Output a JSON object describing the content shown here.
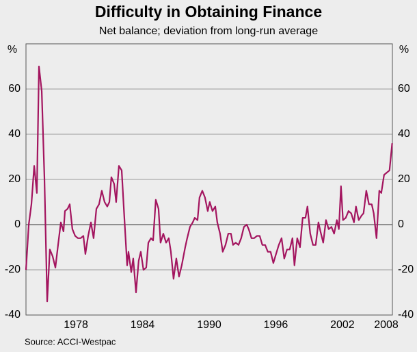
{
  "chart_data": {
    "type": "line",
    "title": "Difficulty in Obtaining Finance",
    "subtitle": "Net balance; deviation from long-run average",
    "y_label": "%",
    "source": "Source: ACCI-Westpac",
    "ylim": [
      -40,
      80
    ],
    "yticks": [
      -40,
      -20,
      0,
      20,
      40,
      60
    ],
    "xlim": [
      1974,
      2007
    ],
    "xticks": [
      {
        "value": 1978.5,
        "label": "1978"
      },
      {
        "value": 1984.5,
        "label": "1984"
      },
      {
        "value": 1990.5,
        "label": "1990"
      },
      {
        "value": 1996.5,
        "label": "1996"
      },
      {
        "value": 2002.5,
        "label": "2002"
      },
      {
        "value": 2008.5,
        "label": "2008"
      }
    ],
    "grid": true,
    "series": [
      {
        "color": "#a3155f",
        "x": [
          1974.0,
          1974.25,
          1974.49,
          1974.74,
          1974.98,
          1975.17,
          1975.42,
          1975.66,
          1975.91,
          1976.15,
          1976.4,
          1976.65,
          1976.89,
          1977.14,
          1977.38,
          1977.51,
          1977.75,
          1977.94,
          1978.18,
          1978.43,
          1978.68,
          1978.92,
          1979.17,
          1979.35,
          1979.6,
          1979.85,
          1980.09,
          1980.34,
          1980.58,
          1980.83,
          1981.08,
          1981.32,
          1981.51,
          1981.69,
          1981.94,
          1982.12,
          1982.37,
          1982.62,
          1982.86,
          1983.11,
          1983.23,
          1983.48,
          1983.66,
          1983.91,
          1984.15,
          1984.34,
          1984.58,
          1984.83,
          1985.02,
          1985.26,
          1985.45,
          1985.69,
          1985.94,
          1986.12,
          1986.37,
          1986.62,
          1986.86,
          1987.05,
          1987.29,
          1987.54,
          1987.78,
          1988.03,
          1988.34,
          1988.52,
          1988.77,
          1989.02,
          1989.2,
          1989.45,
          1989.63,
          1989.88,
          1990.12,
          1990.37,
          1990.55,
          1990.8,
          1991.05,
          1991.23,
          1991.48,
          1991.72,
          1991.97,
          1992.22,
          1992.46,
          1992.65,
          1992.89,
          1993.14,
          1993.38,
          1993.63,
          1993.88,
          1994.06,
          1994.31,
          1994.55,
          1994.8,
          1995.05,
          1995.29,
          1995.54,
          1995.78,
          1996.03,
          1996.28,
          1996.52,
          1996.77,
          1997.02,
          1997.26,
          1997.51,
          1997.75,
          1998.0,
          1998.18,
          1998.43,
          1998.68,
          1998.92,
          1999.17,
          1999.35,
          1999.6,
          1999.85,
          2000.09,
          2000.34,
          2000.52,
          2000.77,
          2001.02,
          2001.26,
          2001.51,
          2001.75,
          2002.0,
          2002.18,
          2002.37,
          2002.55,
          2002.8,
          2003.05,
          2003.29,
          2003.54,
          2003.72,
          2003.97,
          2004.22,
          2004.4,
          2004.65,
          2004.89,
          2005.14,
          2005.32,
          2005.57,
          2005.82,
          2006.0,
          2006.25,
          2006.49,
          2006.74,
          2006.98
        ],
        "values": [
          -20,
          0,
          9,
          26,
          14,
          70,
          59,
          21,
          -34,
          -11,
          -14,
          -19,
          -9,
          1,
          -3,
          6,
          7,
          9,
          -2,
          -5,
          -6,
          -6,
          -5,
          -13,
          -5,
          1,
          -6,
          7,
          9,
          15,
          10,
          8,
          10,
          21,
          18,
          10,
          26,
          24,
          3,
          -18,
          -12,
          -21,
          -15,
          -30,
          -16,
          -12,
          -20,
          -19,
          -8,
          -6,
          -7,
          11,
          7,
          -8,
          -4,
          -8,
          -6,
          -12,
          -24,
          -15,
          -23,
          -18,
          -10,
          -6,
          -1,
          1,
          3,
          2,
          12,
          15,
          12,
          6,
          10,
          6,
          8,
          1,
          -4,
          -12,
          -9,
          -4,
          -4,
          -9,
          -8,
          -9,
          -6,
          -1,
          0,
          -2,
          -6,
          -6,
          -5,
          -5,
          -9,
          -9,
          -12,
          -12,
          -17,
          -13,
          -9,
          -6,
          -15,
          -11,
          -11,
          -6,
          -18,
          -6,
          -10,
          3,
          3,
          8,
          -4,
          -9,
          -9,
          1,
          -3,
          -8,
          2,
          -2,
          -1,
          -4,
          2,
          -2,
          17,
          2,
          3,
          6,
          5,
          1,
          8,
          2,
          4,
          5,
          15,
          9,
          9,
          5,
          -6,
          15,
          14,
          22,
          23,
          24,
          36
        ]
      }
    ]
  }
}
